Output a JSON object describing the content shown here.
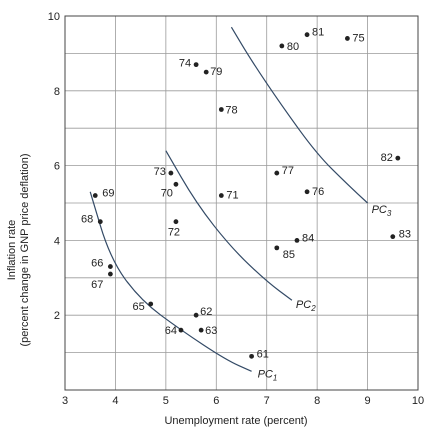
{
  "chart_data": {
    "type": "scatter",
    "xlabel": "Unemployment rate (percent)",
    "ylabel": "Inflation rate",
    "ylabel_sub": "(percent change in GNP price deflation)",
    "xlim": [
      3,
      10
    ],
    "ylim": [
      0,
      10
    ],
    "x_ticks": [
      3,
      4,
      5,
      6,
      7,
      8,
      9,
      10
    ],
    "y_ticks": [
      2,
      4,
      6,
      8,
      10
    ],
    "grid": true,
    "points": [
      {
        "label": "61",
        "x": 6.7,
        "y": 0.9
      },
      {
        "label": "62",
        "x": 5.6,
        "y": 2.0
      },
      {
        "label": "63",
        "x": 5.7,
        "y": 1.6
      },
      {
        "label": "64",
        "x": 5.3,
        "y": 1.6
      },
      {
        "label": "65",
        "x": 4.7,
        "y": 2.3
      },
      {
        "label": "66",
        "x": 3.9,
        "y": 3.3
      },
      {
        "label": "67",
        "x": 3.9,
        "y": 3.1
      },
      {
        "label": "68",
        "x": 3.7,
        "y": 4.5
      },
      {
        "label": "69",
        "x": 3.6,
        "y": 5.2
      },
      {
        "label": "70",
        "x": 5.2,
        "y": 5.5
      },
      {
        "label": "71",
        "x": 6.1,
        "y": 5.2
      },
      {
        "label": "72",
        "x": 5.2,
        "y": 4.5
      },
      {
        "label": "73",
        "x": 5.1,
        "y": 5.8
      },
      {
        "label": "74",
        "x": 5.6,
        "y": 8.7
      },
      {
        "label": "75",
        "x": 8.6,
        "y": 9.4
      },
      {
        "label": "76",
        "x": 7.8,
        "y": 5.3
      },
      {
        "label": "77",
        "x": 7.2,
        "y": 5.8
      },
      {
        "label": "78",
        "x": 6.1,
        "y": 7.5
      },
      {
        "label": "79",
        "x": 5.8,
        "y": 8.5
      },
      {
        "label": "80",
        "x": 7.3,
        "y": 9.2
      },
      {
        "label": "81",
        "x": 7.8,
        "y": 9.5
      },
      {
        "label": "82",
        "x": 9.6,
        "y": 6.2
      },
      {
        "label": "83",
        "x": 9.5,
        "y": 4.1
      },
      {
        "label": "84",
        "x": 7.6,
        "y": 4.0
      },
      {
        "label": "85",
        "x": 7.2,
        "y": 3.8
      }
    ],
    "curves": [
      {
        "name": "PC",
        "subscript": "1",
        "points": [
          [
            3.5,
            5.3
          ],
          [
            3.9,
            3.5
          ],
          [
            4.5,
            2.4
          ],
          [
            5.3,
            1.6
          ],
          [
            6.2,
            0.8
          ],
          [
            6.7,
            0.5
          ]
        ]
      },
      {
        "name": "PC",
        "subscript": "2",
        "points": [
          [
            5.0,
            6.4
          ],
          [
            5.6,
            5.0
          ],
          [
            6.3,
            3.8
          ],
          [
            7.0,
            2.9
          ],
          [
            7.5,
            2.4
          ]
        ]
      },
      {
        "name": "PC",
        "subscript": "3",
        "points": [
          [
            6.3,
            9.7
          ],
          [
            6.7,
            8.8
          ],
          [
            7.3,
            7.6
          ],
          [
            8.0,
            6.3
          ],
          [
            8.6,
            5.5
          ],
          [
            9.0,
            5.0
          ]
        ]
      }
    ]
  }
}
